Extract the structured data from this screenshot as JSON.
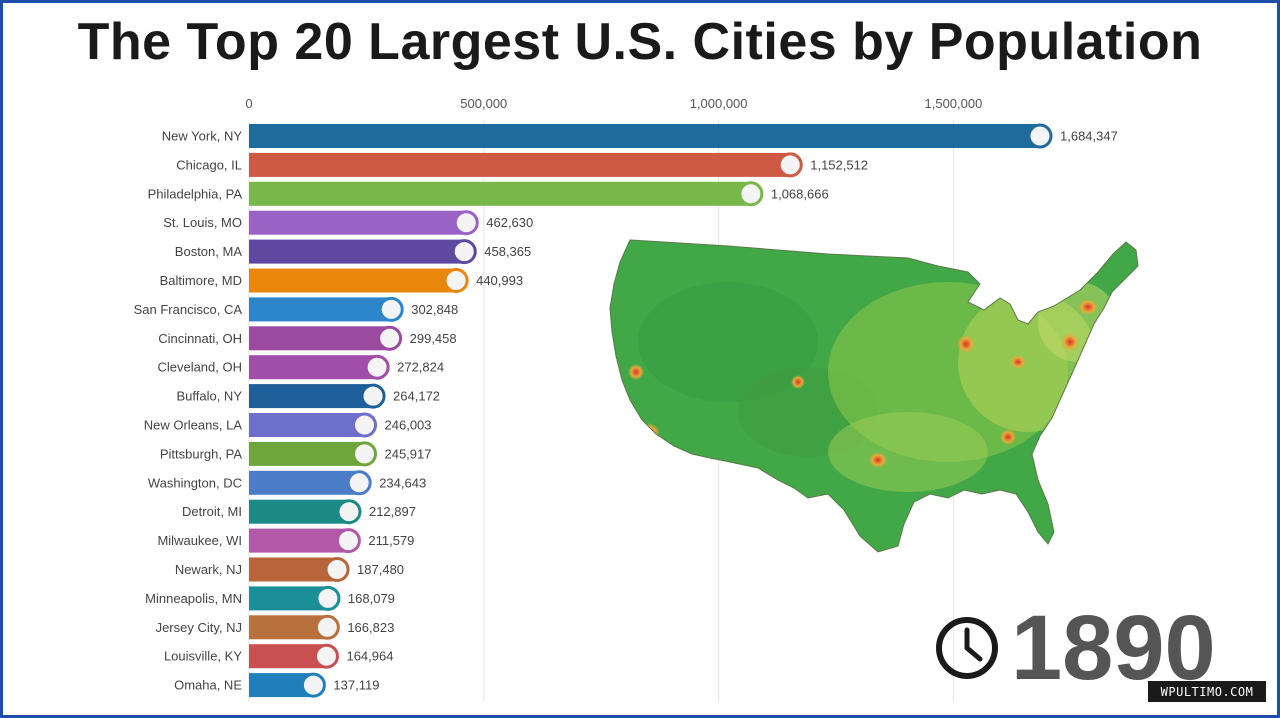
{
  "title": "The Top 20 Largest U.S. Cities by Population",
  "year": "1890",
  "watermark": "WPULTIMO.COM",
  "chart_data": {
    "type": "bar",
    "orientation": "horizontal",
    "title": "The Top 20 Largest U.S. Cities by Population",
    "x_ticks": [
      0,
      500000,
      1000000,
      1500000
    ],
    "x_tick_labels": [
      "0",
      "500,000",
      "1,000,000",
      "1,500,000"
    ],
    "xlim": [
      0,
      1700000
    ],
    "grid": true,
    "categories": [
      "New York, NY",
      "Chicago, IL",
      "Philadelphia, PA",
      "St. Louis, MO",
      "Boston, MA",
      "Baltimore, MD",
      "San Francisco, CA",
      "Cincinnati, OH",
      "Cleveland, OH",
      "Buffalo, NY",
      "New Orleans, LA",
      "Pittsburgh, PA",
      "Washington, DC",
      "Detroit, MI",
      "Milwaukee, WI",
      "Newark, NJ",
      "Minneapolis, MN",
      "Jersey City, NJ",
      "Louisville, KY",
      "Omaha, NE"
    ],
    "values": [
      1684347,
      1152512,
      1068666,
      462630,
      458365,
      440993,
      302848,
      299458,
      272824,
      264172,
      246003,
      245917,
      234643,
      212897,
      211579,
      187480,
      168079,
      166823,
      164964,
      137119
    ],
    "value_labels": [
      "1,684,347",
      "1,152,512",
      "1,068,666",
      "462,630",
      "458,365",
      "440,993",
      "302,848",
      "299,458",
      "272,824",
      "264,172",
      "246,003",
      "245,917",
      "234,643",
      "212,897",
      "211,579",
      "187,480",
      "168,079",
      "166,823",
      "164,964",
      "137,119"
    ],
    "colors": [
      "#1f6b9b",
      "#cf5a43",
      "#78b84a",
      "#9a62c6",
      "#5d4aa0",
      "#e8870c",
      "#2d86c9",
      "#9b4aa0",
      "#a04ea8",
      "#1f5f99",
      "#6d6fcb",
      "#6fa63c",
      "#4a7cc8",
      "#1b8a85",
      "#b258a8",
      "#b8653c",
      "#1a8f98",
      "#b8713c",
      "#c85050",
      "#1f7fba"
    ]
  }
}
